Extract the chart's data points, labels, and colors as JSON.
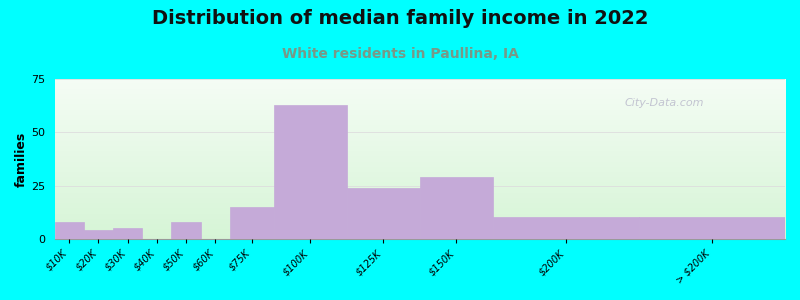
{
  "title": "Distribution of median family income in 2022",
  "subtitle": "White residents in Paullina, IA",
  "ylabel": "families",
  "title_fontsize": 14,
  "subtitle_fontsize": 10,
  "ylabel_fontsize": 9,
  "categories": [
    "$10K",
    "$20K",
    "$30K",
    "$40K",
    "$50K",
    "$60K",
    "$75K",
    "$100K",
    "$125K",
    "$150K",
    "$200K",
    "> $200K"
  ],
  "values": [
    8,
    4,
    5,
    0,
    8,
    0,
    15,
    63,
    24,
    29,
    10,
    10
  ],
  "bar_widths": [
    1,
    1,
    1,
    1,
    1,
    1,
    1.5,
    2.5,
    2.5,
    2.5,
    5,
    5
  ],
  "bar_lefts": [
    0,
    1,
    2,
    3,
    4,
    5,
    6,
    7.5,
    10,
    12.5,
    15,
    20
  ],
  "xtick_positions": [
    0.5,
    1.5,
    2.5,
    3.5,
    4.5,
    5.5,
    6.75,
    8.75,
    11.25,
    13.75,
    17.5,
    22.5
  ],
  "bar_color": "#c5aad8",
  "background_color": "#00ffff",
  "plot_bg_top_left": "#f0f8ee",
  "plot_bg_bottom_right": "#daf0da",
  "ylim": [
    0,
    75
  ],
  "yticks": [
    0,
    25,
    50,
    75
  ],
  "grid_color": "#dddddd",
  "watermark": "City-Data.com",
  "title_color": "#111111",
  "subtitle_color": "#779988"
}
